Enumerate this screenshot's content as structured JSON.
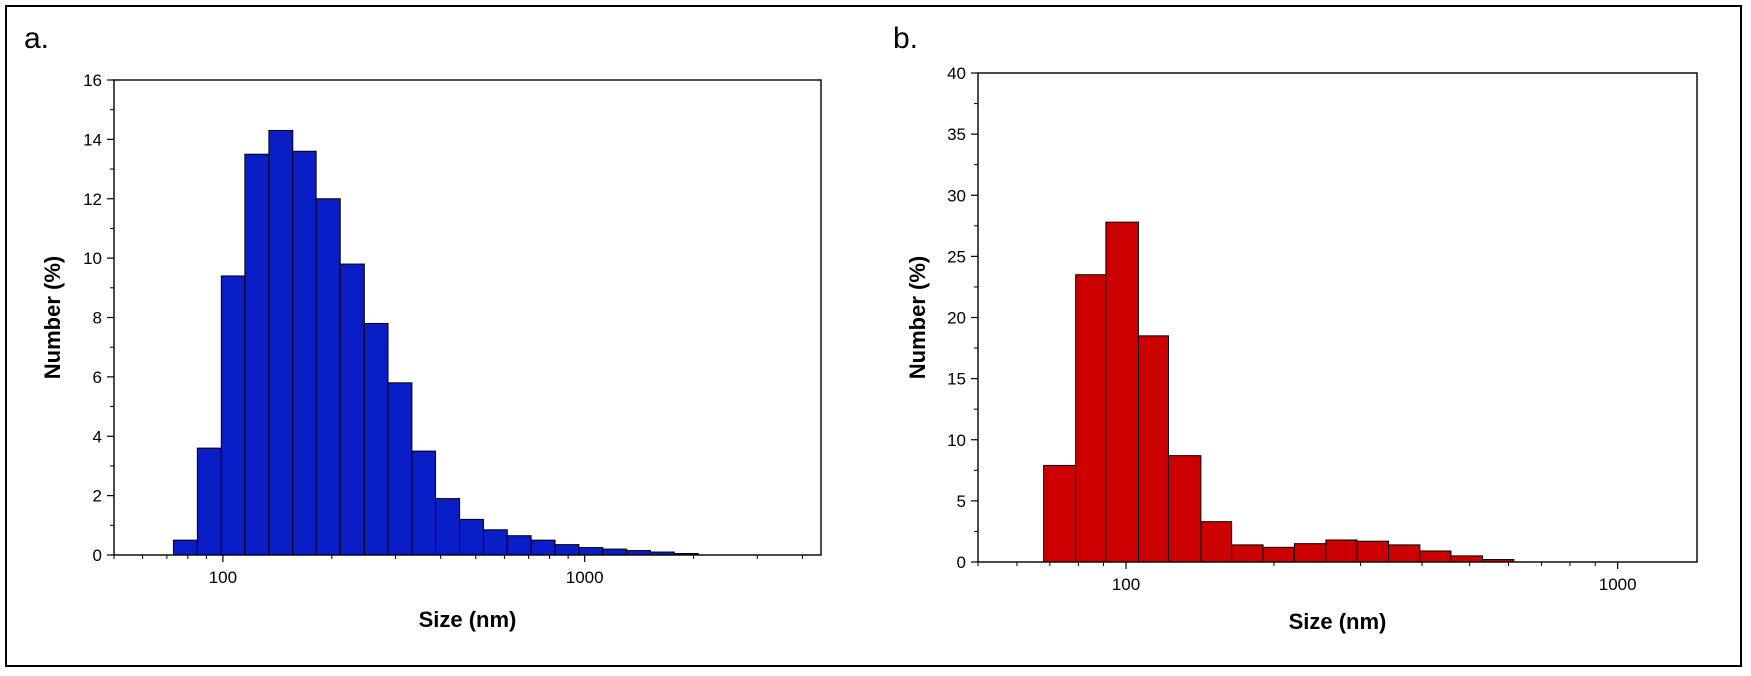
{
  "chart_data": [
    {
      "panel_label": "a.",
      "type": "bar",
      "xlabel": "Size (nm)",
      "ylabel": "Number (%)",
      "x_scale": "log",
      "xlim": [
        50,
        4500
      ],
      "ylim": [
        0,
        16
      ],
      "x_ticks": [
        100,
        1000
      ],
      "y_ticks": [
        0,
        2,
        4,
        6,
        8,
        10,
        12,
        14,
        16
      ],
      "bar_color": "#0a1ec8",
      "bin_edges": [
        73,
        85,
        99,
        115,
        134,
        156,
        181,
        211,
        246,
        286,
        333,
        387,
        451,
        525,
        611,
        711,
        828,
        964,
        1122,
        1306,
        1520,
        1769,
        2060
      ],
      "values": [
        0.5,
        3.6,
        9.4,
        13.5,
        14.3,
        13.6,
        12.0,
        9.8,
        7.8,
        5.8,
        3.5,
        1.9,
        1.2,
        0.85,
        0.65,
        0.5,
        0.35,
        0.25,
        0.2,
        0.15,
        0.1,
        0.05
      ]
    },
    {
      "panel_label": "b.",
      "type": "bar",
      "xlabel": "Size (nm)",
      "ylabel": "Number (%)",
      "x_scale": "log",
      "xlim": [
        50,
        1450
      ],
      "ylim": [
        0,
        40
      ],
      "x_ticks": [
        100,
        1000
      ],
      "y_ticks": [
        0,
        5,
        10,
        15,
        20,
        25,
        30,
        35,
        40
      ],
      "bar_color": "#cc0000",
      "bin_edges": [
        68,
        79,
        91,
        106,
        122,
        142,
        164,
        190,
        220,
        255,
        295,
        342,
        396,
        458,
        531,
        615
      ],
      "values": [
        7.9,
        23.5,
        27.8,
        18.5,
        8.7,
        3.3,
        1.4,
        1.2,
        1.5,
        1.8,
        1.7,
        1.4,
        0.9,
        0.5,
        0.2
      ]
    }
  ]
}
